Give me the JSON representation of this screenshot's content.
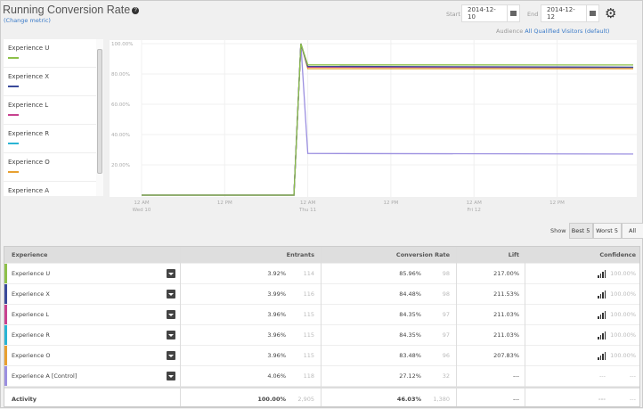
{
  "header": {
    "title": "Running Conversion Rate",
    "change_metric": "(Change metric)",
    "start_label": "Start",
    "start_date": "2014-12-10",
    "end_label": "End",
    "end_date": "2014-12-12",
    "audience_label": "Audience",
    "audience_value": "All Qualified Visitors (default)"
  },
  "legend": [
    {
      "name": "Experience U",
      "color": "#8dc04a"
    },
    {
      "name": "Experience X",
      "color": "#3a4a9a"
    },
    {
      "name": "Experience L",
      "color": "#c8428f"
    },
    {
      "name": "Experience R",
      "color": "#2ab4d4"
    },
    {
      "name": "Experience O",
      "color": "#e8a030"
    },
    {
      "name": "Experience A",
      "color": "#9b8fe0"
    }
  ],
  "chart_data": {
    "type": "line",
    "ylim": [
      0,
      100
    ],
    "y_ticks": [
      "100.00%",
      "80.00%",
      "60.00%",
      "40.00%",
      "20.00%"
    ],
    "x_ticks": [
      {
        "t": "2014-12-10 00:00",
        "l1": "12 AM",
        "l2": "Wed 10"
      },
      {
        "t": "2014-12-10 12:00",
        "l1": "12 PM",
        "l2": ""
      },
      {
        "t": "2014-12-11 00:00",
        "l1": "12 AM",
        "l2": "Thu 11"
      },
      {
        "t": "2014-12-11 12:00",
        "l1": "12 PM",
        "l2": ""
      },
      {
        "t": "2014-12-12 00:00",
        "l1": "12 AM",
        "l2": "Fri 12"
      },
      {
        "t": "2014-12-12 12:00",
        "l1": "12 PM",
        "l2": ""
      }
    ],
    "x": [
      "2014-12-10 00:00",
      "2014-12-10 22:00",
      "2014-12-10 23:00",
      "2014-12-11 00:00",
      "2014-12-12 23:00"
    ],
    "series": [
      {
        "name": "Experience U",
        "color": "#8dc04a",
        "values": [
          0,
          0,
          100,
          86,
          85.96
        ]
      },
      {
        "name": "Experience X",
        "color": "#3a4a9a",
        "values": [
          0,
          0,
          100,
          85,
          84.48
        ]
      },
      {
        "name": "Experience L",
        "color": "#c8428f",
        "values": [
          0,
          0,
          100,
          84.5,
          84.35
        ]
      },
      {
        "name": "Experience R",
        "color": "#2ab4d4",
        "values": [
          0,
          0,
          100,
          84.5,
          84.35
        ]
      },
      {
        "name": "Experience O",
        "color": "#e8a030",
        "values": [
          0,
          0,
          100,
          83.5,
          83.48
        ]
      },
      {
        "name": "Experience A",
        "color": "#9b8fe0",
        "values": [
          0,
          0,
          100,
          27.5,
          27.12
        ]
      }
    ]
  },
  "show": {
    "label": "Show",
    "options": [
      "Best 5",
      "Worst 5",
      "All"
    ],
    "selected": "Best 5"
  },
  "table": {
    "headers": [
      "Experience",
      "Entrants",
      "Conversion Rate",
      "Lift",
      "Confidence"
    ],
    "rows": [
      {
        "name": "Experience U",
        "color": "#8dc04a",
        "entrants_pct": "3.92%",
        "entrants": "114",
        "cr": "85.96%",
        "conv": "98",
        "lift": "217.00%",
        "conf": "100.00%"
      },
      {
        "name": "Experience X",
        "color": "#3a4a9a",
        "entrants_pct": "3.99%",
        "entrants": "116",
        "cr": "84.48%",
        "conv": "98",
        "lift": "211.53%",
        "conf": "100.00%"
      },
      {
        "name": "Experience L",
        "color": "#c8428f",
        "entrants_pct": "3.96%",
        "entrants": "115",
        "cr": "84.35%",
        "conv": "97",
        "lift": "211.03%",
        "conf": "100.00%"
      },
      {
        "name": "Experience R",
        "color": "#2ab4d4",
        "entrants_pct": "3.96%",
        "entrants": "115",
        "cr": "84.35%",
        "conv": "97",
        "lift": "211.03%",
        "conf": "100.00%"
      },
      {
        "name": "Experience O",
        "color": "#e8a030",
        "entrants_pct": "3.96%",
        "entrants": "115",
        "cr": "83.48%",
        "conv": "96",
        "lift": "207.83%",
        "conf": "100.00%"
      },
      {
        "name": "Experience A [Control]",
        "color": "#9b8fe0",
        "entrants_pct": "4.06%",
        "entrants": "118",
        "cr": "27.12%",
        "conv": "32",
        "lift": "---",
        "conf": "---",
        "conf_icon": "---"
      }
    ],
    "total": {
      "name": "Activity",
      "entrants_pct": "100.00%",
      "entrants": "2,905",
      "cr": "46.03%",
      "conv": "1,380",
      "lift": "---",
      "conf_icon": "---",
      "conf": "---"
    }
  }
}
